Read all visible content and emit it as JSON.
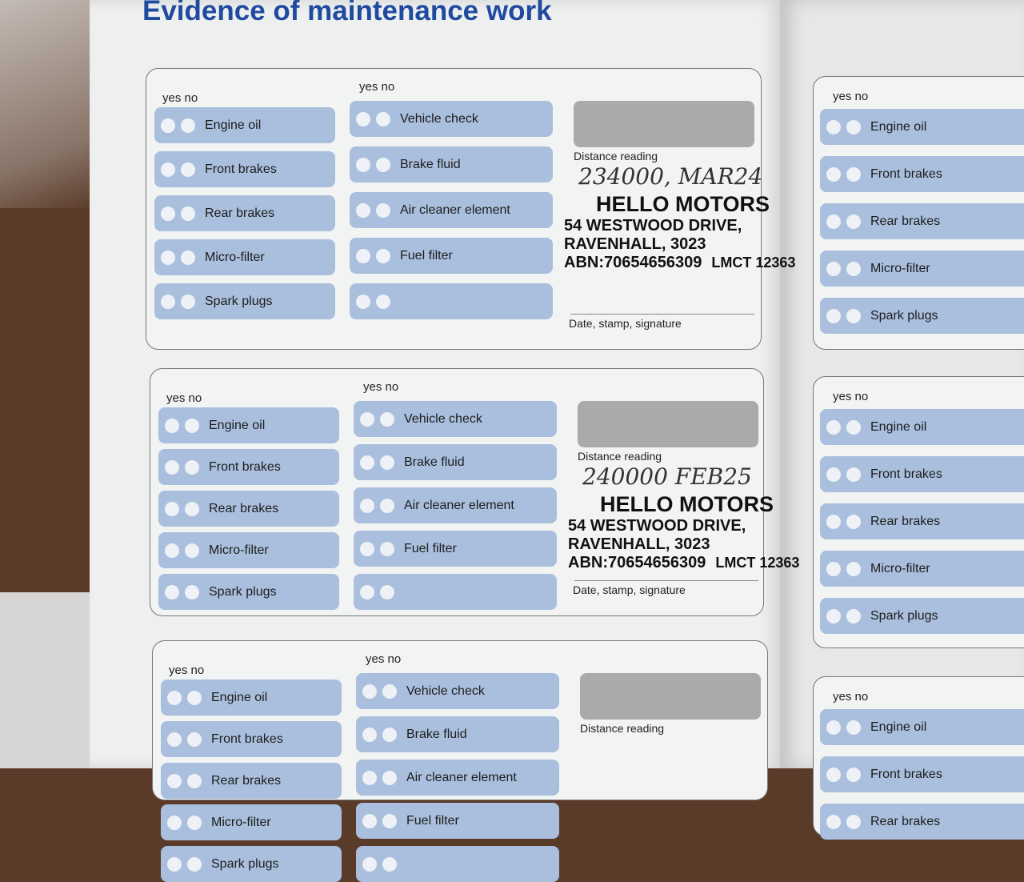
{
  "title": "Evidence of maintenance work",
  "labels": {
    "yes_no": "yes no",
    "distance_reading": "Distance reading",
    "signature": "Date, stamp, signature"
  },
  "left_column_items": [
    "Engine oil",
    "Front brakes",
    "Rear brakes",
    "Micro-filter",
    "Spark plugs"
  ],
  "middle_column_items": [
    "Vehicle check",
    "Brake fluid",
    "Air cleaner element",
    "Fuel filter",
    ""
  ],
  "stamp": {
    "name": "HELLO MOTORS",
    "address1": "54 WESTWOOD DRIVE,",
    "address2": "RAVENHALL, 3023",
    "abn": "ABN:70654656309",
    "lmct": "LMCT 12363"
  },
  "entries": [
    {
      "distance_handwritten": "234000, MAR24"
    },
    {
      "distance_handwritten": "240000 FEB25"
    },
    {
      "distance_handwritten": ""
    }
  ],
  "colors": {
    "title": "#1f4aa0",
    "item_fill": "#a9bfdd",
    "distance_box": "#a9aaab"
  }
}
